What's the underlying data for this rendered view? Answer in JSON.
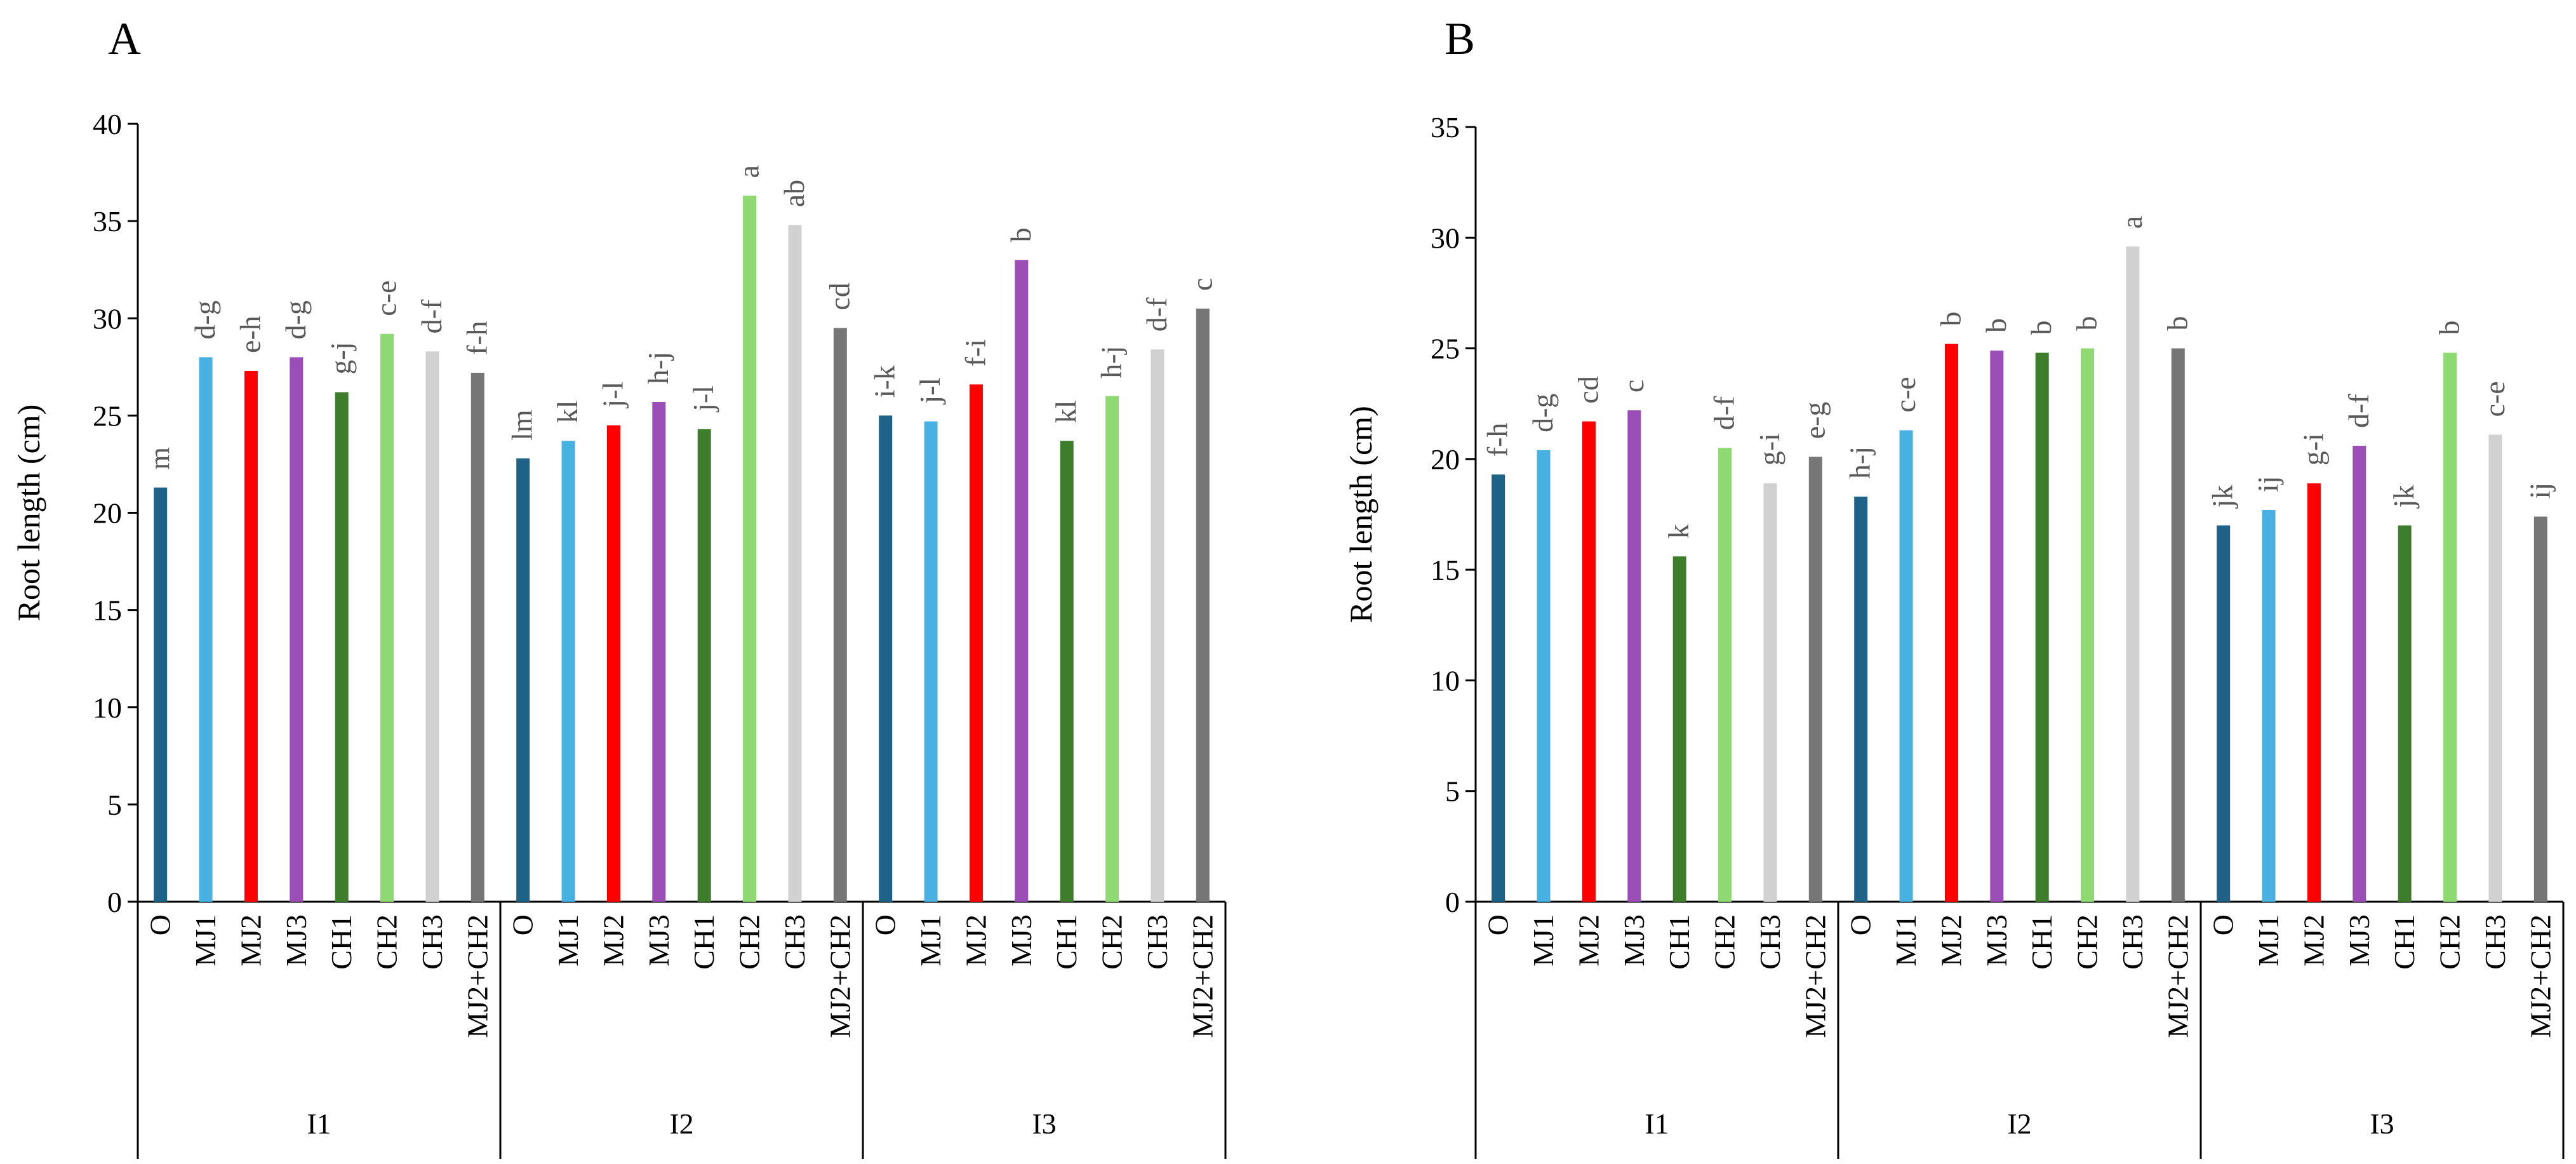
{
  "figure": {
    "colors": {
      "O": "#1f6288",
      "MJ1": "#49b1e2",
      "MJ2": "#ff0000",
      "MJ3": "#9b4fb6",
      "CH1": "#3d7d2c",
      "CH2": "#8ed972",
      "CH3": "#d1d1d1",
      "MJ2+CH2": "#767676",
      "axis": "#000000",
      "letter_text": "#595959"
    }
  },
  "chart_data": [
    {
      "type": "bar",
      "panel_label": "A",
      "ylabel": "Root length (cm)",
      "xlabel": "",
      "ylim": [
        0,
        40
      ],
      "yticks": [
        0,
        5,
        10,
        15,
        20,
        25,
        30,
        35,
        40
      ],
      "ytick_labels": [
        "0",
        "5",
        "10",
        "15",
        "20",
        "25",
        "30",
        "35",
        "40"
      ],
      "grid": false,
      "groups": [
        {
          "name": "I1",
          "categories": [
            "O",
            "MJ1",
            "MJ2",
            "MJ3",
            "CH1",
            "CH2",
            "CH3",
            "MJ2+CH2"
          ],
          "values": [
            21.3,
            28.0,
            27.3,
            28.0,
            26.2,
            29.2,
            28.3,
            27.2
          ],
          "letters": [
            "m",
            "d-g",
            "e-h",
            "d-g",
            "g-j",
            "c-e",
            "d-f",
            "f-h"
          ]
        },
        {
          "name": "I2",
          "categories": [
            "O",
            "MJ1",
            "MJ2",
            "MJ3",
            "CH1",
            "CH2",
            "CH3",
            "MJ2+CH2"
          ],
          "values": [
            22.8,
            23.7,
            24.5,
            25.7,
            24.3,
            36.3,
            34.8,
            29.5
          ],
          "letters": [
            "lm",
            "kl",
            "j-l",
            "h-j",
            "j-l",
            "a",
            "ab",
            "cd"
          ]
        },
        {
          "name": "I3",
          "categories": [
            "O",
            "MJ1",
            "MJ2",
            "MJ3",
            "CH1",
            "CH2",
            "CH3",
            "MJ2+CH2"
          ],
          "values": [
            25.0,
            24.7,
            26.6,
            33.0,
            23.7,
            26.0,
            28.4,
            30.5
          ],
          "letters": [
            "i-k",
            "j-l",
            "f-i",
            "b",
            "kl",
            "h-j",
            "d-f",
            "c"
          ]
        }
      ]
    },
    {
      "type": "bar",
      "panel_label": "B",
      "ylabel": "Root length (cm)",
      "xlabel": "",
      "ylim": [
        0,
        35
      ],
      "yticks": [
        0,
        5,
        10,
        15,
        20,
        25,
        30,
        35
      ],
      "ytick_labels": [
        "0",
        "5",
        "10",
        "15",
        "20",
        "25",
        "30",
        "35"
      ],
      "grid": false,
      "groups": [
        {
          "name": "I1",
          "categories": [
            "O",
            "MJ1",
            "MJ2",
            "MJ3",
            "CH1",
            "CH2",
            "CH3",
            "MJ2+CH2"
          ],
          "values": [
            19.3,
            20.4,
            21.7,
            22.2,
            15.6,
            20.5,
            18.9,
            20.1
          ],
          "letters": [
            "f-h",
            "d-g",
            "cd",
            "c",
            "k",
            "d-f",
            "g-i",
            "e-g"
          ]
        },
        {
          "name": "I2",
          "categories": [
            "O",
            "MJ1",
            "MJ2",
            "MJ3",
            "CH1",
            "CH2",
            "CH3",
            "MJ2+CH2"
          ],
          "values": [
            18.3,
            21.3,
            25.2,
            24.9,
            24.8,
            25.0,
            29.6,
            25.0
          ],
          "letters": [
            "h-j",
            "c-e",
            "b",
            "b",
            "b",
            "b",
            "a",
            "b"
          ]
        },
        {
          "name": "I3",
          "categories": [
            "O",
            "MJ1",
            "MJ2",
            "MJ3",
            "CH1",
            "CH2",
            "CH3",
            "MJ2+CH2"
          ],
          "values": [
            17.0,
            17.7,
            18.9,
            20.6,
            17.0,
            24.8,
            21.1,
            17.4
          ],
          "letters": [
            "jk",
            "ij",
            "g-i",
            "d-f",
            "jk",
            "b",
            "c-e",
            "ij"
          ]
        }
      ]
    }
  ]
}
